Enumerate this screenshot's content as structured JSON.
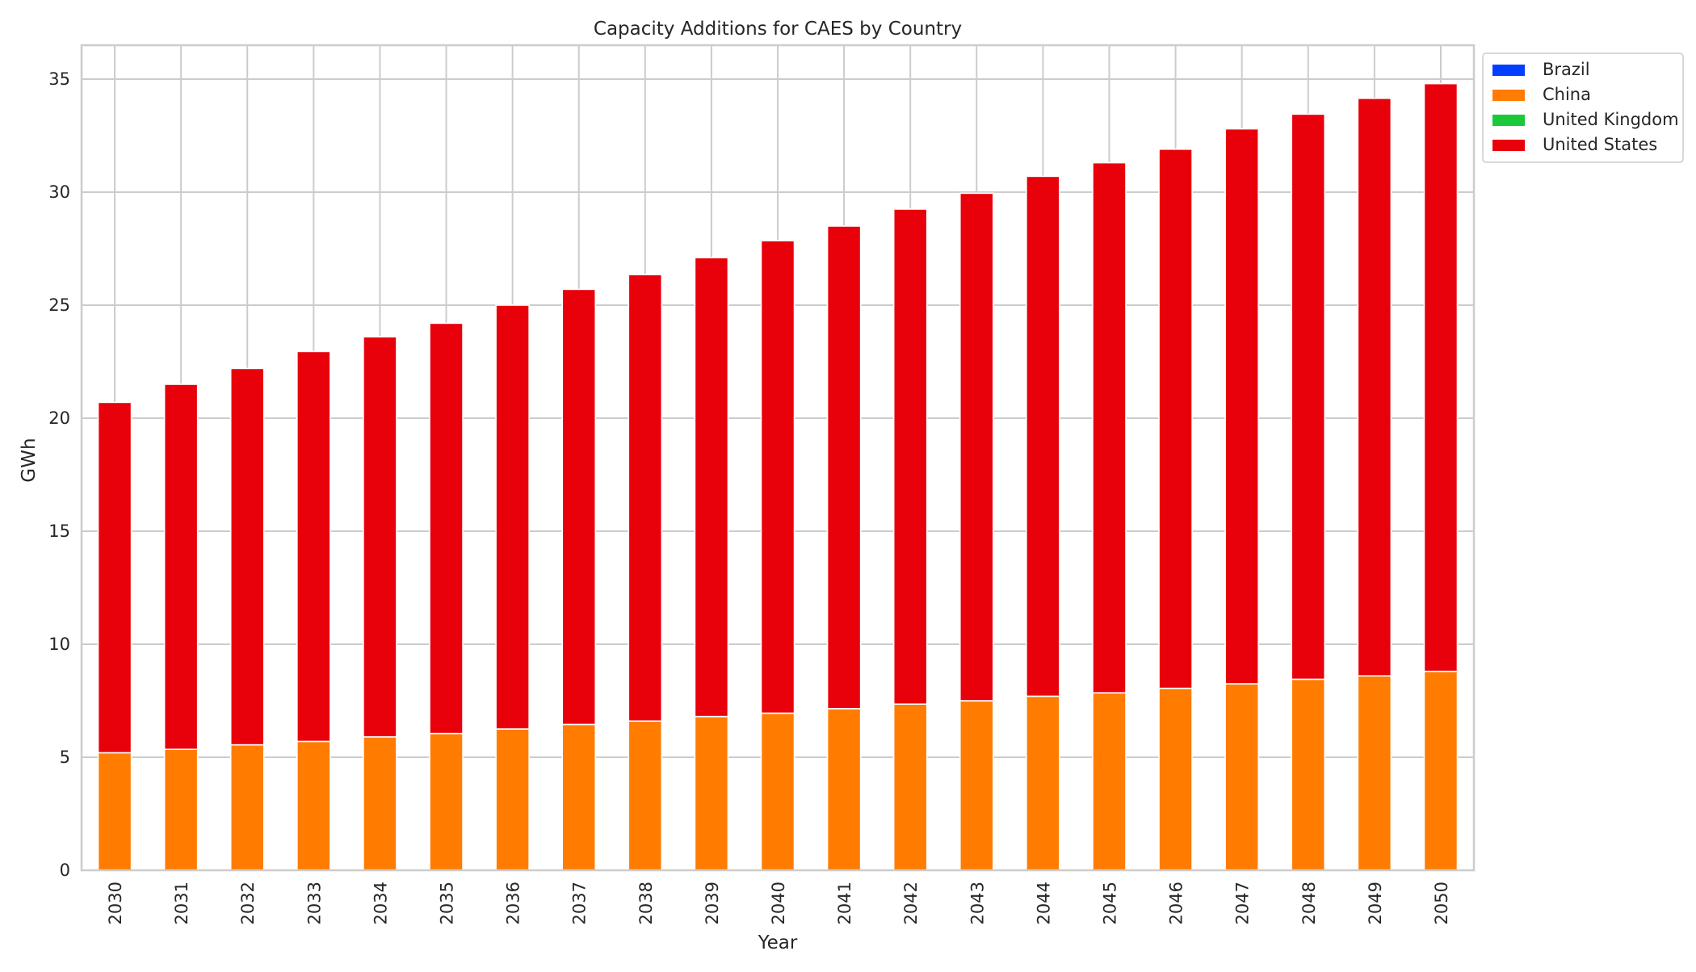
{
  "chart_data": {
    "type": "bar",
    "stacked": true,
    "title": "Capacity Additions for CAES by Country",
    "xlabel": "Year",
    "ylabel": "GWh",
    "categories": [
      "2030",
      "2031",
      "2032",
      "2033",
      "2034",
      "2035",
      "2036",
      "2037",
      "2038",
      "2039",
      "2040",
      "2041",
      "2042",
      "2043",
      "2044",
      "2045",
      "2046",
      "2047",
      "2048",
      "2049",
      "2050"
    ],
    "ylim": [
      0,
      36.5
    ],
    "yticks": [
      0,
      5,
      10,
      15,
      20,
      25,
      30,
      35
    ],
    "grid": true,
    "legend_position": "outside top-right",
    "series": [
      {
        "name": "Brazil",
        "color": "#023eff",
        "values": [
          0,
          0,
          0,
          0,
          0,
          0,
          0,
          0,
          0,
          0,
          0,
          0,
          0,
          0,
          0,
          0,
          0,
          0,
          0,
          0,
          0
        ]
      },
      {
        "name": "China",
        "color": "#ff7c00",
        "values": [
          5.2,
          5.35,
          5.55,
          5.7,
          5.9,
          6.05,
          6.25,
          6.45,
          6.6,
          6.8,
          6.95,
          7.15,
          7.35,
          7.5,
          7.7,
          7.85,
          8.05,
          8.25,
          8.45,
          8.6,
          8.8
        ]
      },
      {
        "name": "United Kingdom",
        "color": "#1ac938",
        "values": [
          0,
          0,
          0,
          0,
          0,
          0,
          0,
          0,
          0,
          0,
          0,
          0,
          0,
          0,
          0,
          0,
          0,
          0,
          0,
          0,
          0
        ]
      },
      {
        "name": "United States",
        "color": "#e8000b",
        "values": [
          15.5,
          16.15,
          16.65,
          17.25,
          17.7,
          18.15,
          18.75,
          19.25,
          19.75,
          20.3,
          20.9,
          21.35,
          21.9,
          22.45,
          23.0,
          23.45,
          23.85,
          24.55,
          25.0,
          25.55,
          26.0
        ]
      }
    ]
  }
}
